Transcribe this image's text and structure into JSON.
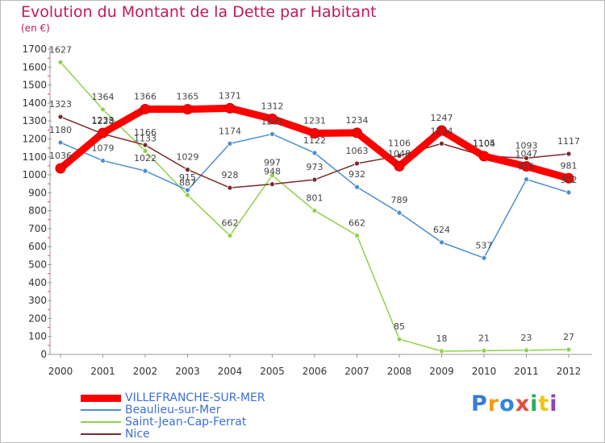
{
  "title": "Evolution du Montant de la Dette par Habitant",
  "subtitle": "(en €)",
  "logo": {
    "text": "Proxiti",
    "colors": [
      "#3a7bd5",
      "#f39c12",
      "#2e86de",
      "#e74c3c",
      "#27ae60",
      "#f1c40f",
      "#8e44ad"
    ]
  },
  "chart_data": {
    "type": "line",
    "x": [
      "2000",
      "2001",
      "2002",
      "2003",
      "2004",
      "2005",
      "2006",
      "2007",
      "2008",
      "2009",
      "2010",
      "2011",
      "2012"
    ],
    "ylim": [
      0,
      1700
    ],
    "yticks": [
      0,
      100,
      200,
      300,
      400,
      500,
      600,
      700,
      800,
      900,
      1000,
      1100,
      1200,
      1300,
      1400,
      1500,
      1600,
      1700
    ],
    "grid": false,
    "legend_position": "bottom",
    "series": [
      {
        "name": "VILLEFRANCHE-SUR-MER",
        "color": "#ff0000",
        "values": [
          1036,
          1233,
          1366,
          1365,
          1371,
          1312,
          1231,
          1234,
          1048,
          1247,
          1104,
          1047,
          981
        ]
      },
      {
        "name": "Beaulieu-sur-Mer",
        "color": "#4a8fd1",
        "values": [
          1180,
          1079,
          1022,
          915,
          1174,
          1227,
          1122,
          932,
          789,
          624,
          537,
          975,
          902
        ]
      },
      {
        "name": "Saint-Jean-Cap-Ferrat",
        "color": "#8fd14a",
        "values": [
          1627,
          1364,
          1133,
          887,
          662,
          997,
          801,
          662,
          85,
          18,
          21,
          23,
          27
        ]
      },
      {
        "name": "Nice",
        "color": "#7a2a2a",
        "values": [
          1323,
          1228,
          1166,
          1029,
          928,
          948,
          973,
          1063,
          1106,
          1174,
          1105,
          1093,
          1117
        ]
      }
    ]
  }
}
